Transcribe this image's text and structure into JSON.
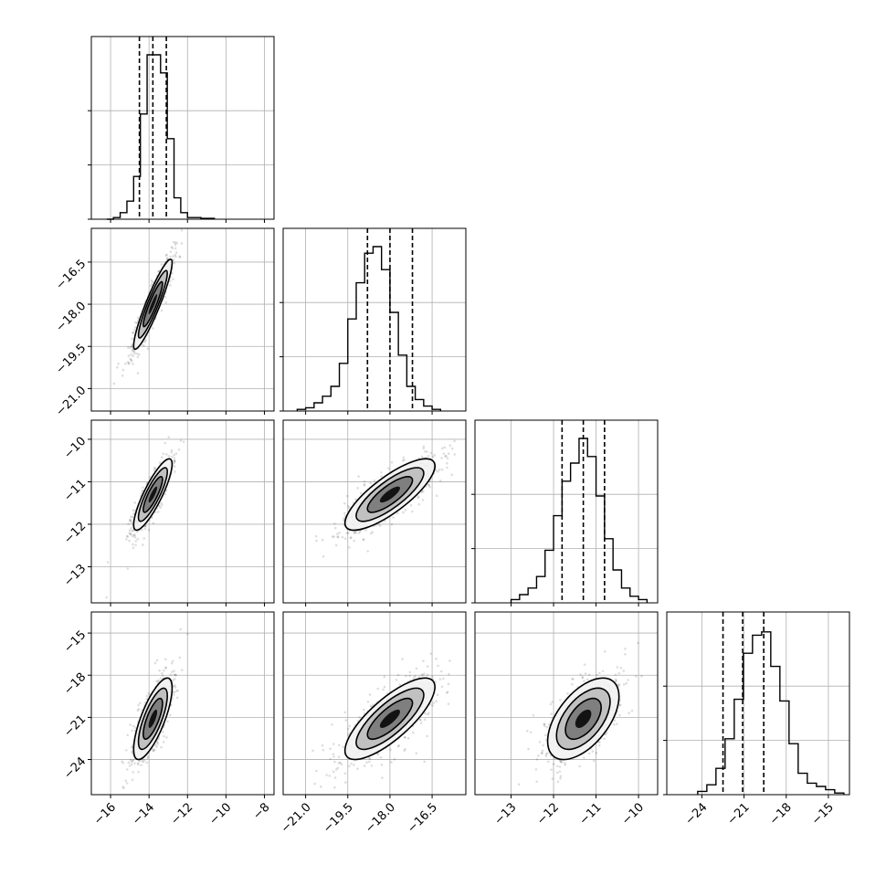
{
  "chart_data": {
    "type": "corner",
    "grid": true,
    "n_params": 4,
    "params": [
      {
        "range": [
          -17,
          -7.5
        ],
        "ticks": [
          -16,
          -14,
          -12,
          -10,
          -8
        ],
        "tick_labels": [
          "−16",
          "−14",
          "−12",
          "−10",
          "−8"
        ],
        "quantiles": [
          -14.5,
          -13.8,
          -13.1
        ],
        "hist": {
          "start": -16.2,
          "width": 0.35,
          "counts": [
            0.0,
            0.01,
            0.04,
            0.11,
            0.26,
            0.64,
            1.0,
            1.0,
            0.89,
            0.49,
            0.13,
            0.04,
            0.01,
            0.01,
            0.005,
            0.005
          ]
        }
      },
      {
        "range": [
          -21.8,
          -15.3
        ],
        "ticks": [
          -21.0,
          -19.5,
          -18.0,
          -16.5
        ],
        "tick_labels": [
          "−21.0",
          "−19.5",
          "−18.0",
          "−16.5"
        ],
        "quantiles": [
          -18.8,
          -18.0,
          -17.2
        ],
        "hist": {
          "start": -21.3,
          "width": 0.3,
          "counts": [
            0.01,
            0.02,
            0.05,
            0.09,
            0.15,
            0.29,
            0.56,
            0.78,
            0.96,
            1.0,
            0.86,
            0.6,
            0.34,
            0.15,
            0.07,
            0.03,
            0.01
          ]
        }
      },
      {
        "range": [
          -13.85,
          -9.55
        ],
        "ticks": [
          -13,
          -12,
          -11,
          -10
        ],
        "tick_labels": [
          "−13",
          "−12",
          "−11",
          "−10"
        ],
        "quantiles": [
          -11.8,
          -11.3,
          -10.8
        ],
        "hist": {
          "start": -13.0,
          "width": 0.2,
          "counts": [
            0.02,
            0.05,
            0.09,
            0.16,
            0.32,
            0.53,
            0.74,
            0.85,
            1.0,
            0.89,
            0.65,
            0.39,
            0.2,
            0.09,
            0.04,
            0.02
          ]
        }
      },
      {
        "range": [
          -26.5,
          -13.5
        ],
        "ticks": [
          -24,
          -21,
          -18,
          -15
        ],
        "tick_labels": [
          "−24",
          "−21",
          "−18",
          "−15"
        ],
        "quantiles": [
          -22.5,
          -21.1,
          -19.6
        ],
        "hist": {
          "start": -24.3,
          "width": 0.65,
          "counts": [
            0.02,
            0.06,
            0.16,
            0.34,
            0.58,
            0.86,
            0.97,
            0.99,
            0.78,
            0.57,
            0.31,
            0.13,
            0.07,
            0.05,
            0.03,
            0.01
          ]
        }
      }
    ],
    "pairs": [
      {
        "x": 0,
        "y": 1,
        "mean": [
          -13.8,
          -18.0
        ],
        "sd": [
          0.5,
          0.8
        ],
        "rho": 0.92
      },
      {
        "x": 0,
        "y": 2,
        "mean": [
          -13.8,
          -11.3
        ],
        "sd": [
          0.5,
          0.42
        ],
        "rho": 0.85
      },
      {
        "x": 1,
        "y": 2,
        "mean": [
          -18.0,
          -11.3
        ],
        "sd": [
          0.8,
          0.42
        ],
        "rho": 0.8
      },
      {
        "x": 0,
        "y": 3,
        "mean": [
          -13.8,
          -21.1
        ],
        "sd": [
          0.5,
          1.45
        ],
        "rho": 0.75
      },
      {
        "x": 1,
        "y": 3,
        "mean": [
          -18.0,
          -21.1
        ],
        "sd": [
          0.8,
          1.45
        ],
        "rho": 0.78
      },
      {
        "x": 2,
        "y": 3,
        "mean": [
          -11.3,
          -21.1
        ],
        "sd": [
          0.42,
          1.45
        ],
        "rho": 0.55
      }
    ],
    "contour_levels_sigma": [
      1.0,
      1.5,
      2.0
    ]
  }
}
